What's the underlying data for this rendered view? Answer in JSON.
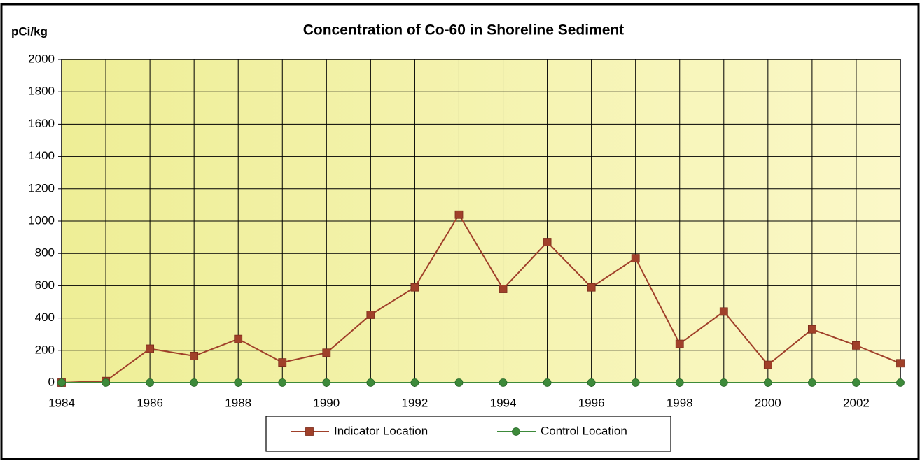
{
  "chart_data": {
    "type": "line",
    "title": "Concentration of Co-60 in Shoreline Sediment",
    "y_label": "pCi/kg",
    "x": [
      1984,
      1985,
      1986,
      1987,
      1988,
      1989,
      1990,
      1991,
      1992,
      1993,
      1994,
      1995,
      1996,
      1997,
      1998,
      1999,
      2000,
      2001,
      2002,
      2003
    ],
    "series": [
      {
        "name": "Indicator Location",
        "color": "#a0402a",
        "marker": "square",
        "values": [
          0,
          10,
          210,
          165,
          270,
          125,
          185,
          420,
          590,
          1040,
          580,
          870,
          590,
          770,
          240,
          440,
          110,
          330,
          230,
          120
        ]
      },
      {
        "name": "Control Location",
        "color": "#3d8a3a",
        "marker": "circle",
        "values": [
          0,
          0,
          0,
          0,
          0,
          0,
          0,
          0,
          0,
          0,
          0,
          0,
          0,
          0,
          0,
          0,
          0,
          0,
          0,
          0
        ]
      }
    ],
    "xlim": [
      1984,
      2003
    ],
    "xticks": [
      1984,
      1986,
      1988,
      1990,
      1992,
      1994,
      1996,
      1998,
      2000,
      2002
    ],
    "ylim": [
      0,
      2000
    ],
    "yticks": [
      0,
      200,
      400,
      600,
      800,
      1000,
      1200,
      1400,
      1600,
      1800,
      2000
    ],
    "grid": true,
    "legend": "bottom"
  }
}
